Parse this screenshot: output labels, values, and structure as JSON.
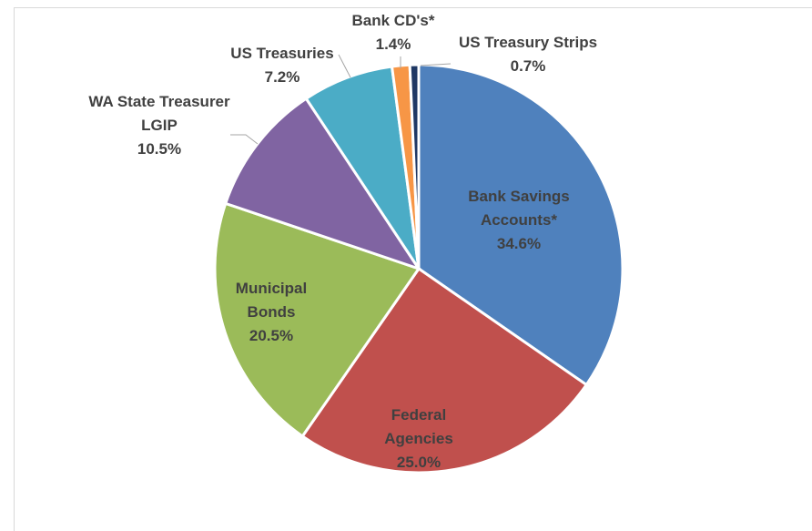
{
  "chart_data": {
    "type": "pie",
    "categories": [
      "Bank Savings Accounts*",
      "Federal Agencies",
      "Municipal Bonds",
      "WA State Treasurer LGIP",
      "US Treasuries",
      "Bank CD's*",
      "US Treasury Strips"
    ],
    "values": [
      34.6,
      25.0,
      20.5,
      10.5,
      7.2,
      1.4,
      0.7
    ],
    "value_labels": [
      "34.6%",
      "25.0%",
      "20.5%",
      "10.5%",
      "7.2%",
      "1.4%",
      "0.7%"
    ],
    "colors": [
      "#4f81bd",
      "#c0504d",
      "#9bbb59",
      "#8064a2",
      "#4bacc6",
      "#f79646",
      "#1f3864"
    ]
  }
}
